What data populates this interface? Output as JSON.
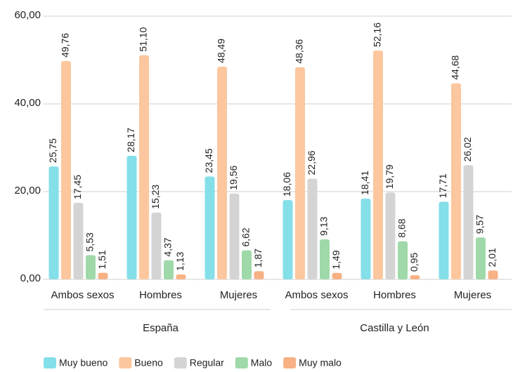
{
  "chart_data": {
    "type": "bar",
    "categories": [
      "Ambos sexos",
      "Hombres",
      "Mujeres",
      "Ambos sexos",
      "Hombres",
      "Mujeres"
    ],
    "groups": [
      "España",
      "Castilla y León"
    ],
    "series": [
      {
        "name": "Muy bueno",
        "color": "#84dfe8",
        "values": [
          25.75,
          28.17,
          23.45,
          18.06,
          18.41,
          17.71
        ],
        "value_labels": [
          "25,75",
          "28,17",
          "23,45",
          "18,06",
          "18,41",
          "17,71"
        ]
      },
      {
        "name": "Bueno",
        "color": "#fcc79e",
        "values": [
          49.76,
          51.1,
          48.49,
          48.36,
          52.16,
          44.68
        ],
        "value_labels": [
          "49,76",
          "51,10",
          "48,49",
          "48,36",
          "52,16",
          "44,68"
        ]
      },
      {
        "name": "Regular",
        "color": "#d4d4d4",
        "values": [
          17.45,
          15.23,
          19.56,
          22.96,
          19.79,
          26.02
        ],
        "value_labels": [
          "17,45",
          "15,23",
          "19,56",
          "22,96",
          "19,79",
          "26,02"
        ]
      },
      {
        "name": "Malo",
        "color": "#9fd9a9",
        "values": [
          5.53,
          4.37,
          6.62,
          9.13,
          8.68,
          9.57
        ],
        "value_labels": [
          "5,53",
          "4,37",
          "6,62",
          "9,13",
          "8,68",
          "9,57"
        ]
      },
      {
        "name": "Muy malo",
        "color": "#f7b184",
        "values": [
          1.51,
          1.13,
          1.87,
          1.49,
          0.95,
          2.01
        ],
        "value_labels": [
          "1,51",
          "1,13",
          "1,87",
          "1,49",
          "0,95",
          "2,01"
        ]
      }
    ],
    "ylim": [
      0,
      60
    ],
    "yticks": [
      {
        "value": 0,
        "label": "0,00"
      },
      {
        "value": 20,
        "label": "20,00"
      },
      {
        "value": 40,
        "label": "40,00"
      },
      {
        "value": 60,
        "label": "60,00"
      }
    ],
    "grid": true,
    "legend": "bottom"
  }
}
